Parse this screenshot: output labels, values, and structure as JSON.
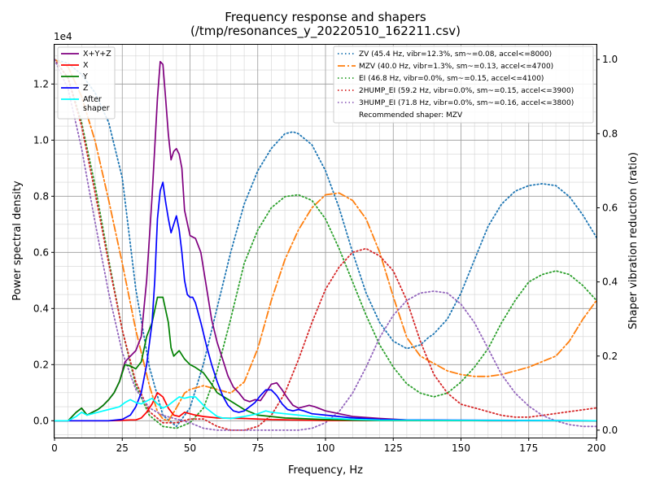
{
  "chart_data": {
    "type": "line",
    "title": "Frequency response and shapers",
    "subtitle": "(/tmp/resonances_y_20220510_162211.csv)",
    "xlabel": "Frequency, Hz",
    "ylabel": "Power spectral density",
    "ylabel_right": "Shaper vibration reduction (ratio)",
    "y_multiplier_label": "1e4",
    "xlim": [
      0,
      200
    ],
    "ylim": [
      -0.06,
      1.34
    ],
    "ylim_right": [
      -0.02,
      1.04
    ],
    "x_ticks": [
      0,
      25,
      50,
      75,
      100,
      125,
      150,
      175,
      200
    ],
    "x_tick_labels": [
      "0",
      "25",
      "50",
      "75",
      "100",
      "125",
      "150",
      "175",
      "200"
    ],
    "y_ticks": [
      0.0,
      0.2,
      0.4,
      0.6,
      0.8,
      1.0,
      1.2
    ],
    "y_tick_labels": [
      "0.0",
      "0.2",
      "0.4",
      "0.6",
      "0.8",
      "1.0",
      "1.2"
    ],
    "y_ticks_right": [
      0.0,
      0.2,
      0.4,
      0.6,
      0.8,
      1.0
    ],
    "y_tick_labels_right": [
      "0.0",
      "0.2",
      "0.4",
      "0.6",
      "0.8",
      "1.0"
    ],
    "grid": true,
    "legend_left_position": "top-left",
    "legend_right_position": "top-right",
    "recommended_text": "Recommended shaper: MZV",
    "psd_series": [
      {
        "name": "X+Y+Z",
        "color": "#800080",
        "style": "solid",
        "x": [
          0,
          5,
          8,
          10,
          12,
          14,
          16,
          18,
          20,
          22,
          24,
          26,
          28,
          30,
          32,
          34,
          36,
          38,
          39,
          40,
          41,
          42,
          43,
          44,
          45,
          46,
          47,
          48,
          50,
          52,
          54,
          56,
          58,
          60,
          62,
          64,
          66,
          68,
          70,
          72,
          74,
          76,
          78,
          80,
          82,
          84,
          86,
          88,
          90,
          92,
          94,
          96,
          100,
          110,
          120,
          130,
          140,
          150,
          160,
          170,
          180,
          190,
          200
        ],
        "y": [
          0,
          0,
          0.03,
          0.045,
          0.02,
          0.03,
          0.04,
          0.055,
          0.075,
          0.1,
          0.14,
          0.21,
          0.23,
          0.25,
          0.3,
          0.5,
          0.8,
          1.15,
          1.28,
          1.27,
          1.15,
          1.02,
          0.93,
          0.96,
          0.97,
          0.95,
          0.9,
          0.75,
          0.66,
          0.65,
          0.6,
          0.48,
          0.36,
          0.28,
          0.22,
          0.16,
          0.12,
          0.1,
          0.075,
          0.068,
          0.075,
          0.072,
          0.1,
          0.13,
          0.135,
          0.11,
          0.08,
          0.055,
          0.045,
          0.05,
          0.055,
          0.05,
          0.035,
          0.015,
          0.008,
          0.003,
          0.002,
          0.001,
          0,
          0,
          0,
          0,
          0
        ]
      },
      {
        "name": "X",
        "color": "#ff0000",
        "style": "solid",
        "x": [
          0,
          20,
          24,
          28,
          30,
          32,
          34,
          36,
          38,
          40,
          42,
          44,
          46,
          48,
          50,
          52,
          55,
          60,
          70,
          80,
          100,
          200
        ],
        "y": [
          0,
          0,
          0.001,
          0.003,
          0.003,
          0.01,
          0.03,
          0.06,
          0.1,
          0.085,
          0.045,
          0.02,
          0.015,
          0.03,
          0.025,
          0.02,
          0.015,
          0.01,
          0.008,
          0.004,
          0.001,
          0
        ]
      },
      {
        "name": "Y",
        "color": "#008000",
        "style": "solid",
        "x": [
          0,
          5,
          8,
          10,
          12,
          14,
          16,
          18,
          20,
          22,
          24,
          26,
          28,
          30,
          32,
          34,
          36,
          38,
          40,
          42,
          43,
          44,
          45,
          46,
          48,
          50,
          52,
          55,
          58,
          60,
          65,
          70,
          75,
          80,
          85,
          90,
          100,
          110,
          120,
          200
        ],
        "y": [
          0,
          0,
          0.03,
          0.045,
          0.02,
          0.03,
          0.04,
          0.055,
          0.075,
          0.1,
          0.14,
          0.2,
          0.195,
          0.185,
          0.21,
          0.3,
          0.35,
          0.44,
          0.44,
          0.35,
          0.26,
          0.23,
          0.24,
          0.25,
          0.22,
          0.2,
          0.19,
          0.17,
          0.13,
          0.1,
          0.07,
          0.04,
          0.02,
          0.015,
          0.01,
          0.008,
          0.004,
          0.002,
          0.001,
          0
        ]
      },
      {
        "name": "Z",
        "color": "#0000ff",
        "style": "solid",
        "x": [
          0,
          20,
          25,
          28,
          30,
          32,
          34,
          36,
          37,
          38,
          39,
          40,
          41,
          42,
          43,
          44,
          45,
          46,
          47,
          48,
          49,
          50,
          51,
          52,
          54,
          56,
          58,
          60,
          62,
          64,
          66,
          68,
          70,
          72,
          74,
          76,
          78,
          80,
          82,
          84,
          86,
          88,
          90,
          92,
          95,
          100,
          110,
          120,
          130,
          200
        ],
        "y": [
          0,
          0,
          0.005,
          0.02,
          0.05,
          0.1,
          0.2,
          0.35,
          0.5,
          0.72,
          0.82,
          0.85,
          0.78,
          0.72,
          0.67,
          0.7,
          0.73,
          0.68,
          0.6,
          0.5,
          0.45,
          0.44,
          0.44,
          0.42,
          0.35,
          0.27,
          0.2,
          0.14,
          0.09,
          0.055,
          0.035,
          0.03,
          0.035,
          0.05,
          0.065,
          0.09,
          0.11,
          0.11,
          0.09,
          0.06,
          0.04,
          0.035,
          0.04,
          0.035,
          0.025,
          0.02,
          0.01,
          0.005,
          0.003,
          0
        ]
      },
      {
        "name": "After\nshaper",
        "color": "#00ffff",
        "style": "solid",
        "x": [
          0,
          5,
          8,
          10,
          12,
          14,
          16,
          18,
          20,
          22,
          24,
          26,
          28,
          30,
          32,
          34,
          36,
          38,
          40,
          42,
          44,
          46,
          48,
          50,
          52,
          54,
          56,
          58,
          60,
          62,
          65,
          70,
          75,
          78,
          80,
          85,
          90,
          100,
          110,
          120,
          200
        ],
        "y": [
          0,
          0,
          0.015,
          0.03,
          0.02,
          0.025,
          0.03,
          0.035,
          0.04,
          0.045,
          0.05,
          0.065,
          0.075,
          0.065,
          0.06,
          0.07,
          0.08,
          0.06,
          0.045,
          0.055,
          0.07,
          0.085,
          0.08,
          0.085,
          0.085,
          0.065,
          0.045,
          0.03,
          0.015,
          0.01,
          0.008,
          0.015,
          0.025,
          0.035,
          0.03,
          0.025,
          0.02,
          0.01,
          0.005,
          0.002,
          0
        ]
      }
    ],
    "shaper_series": [
      {
        "name": "ZV (45.4 Hz, vibr=12.3%, sm~=0.08, accel<=8000)",
        "color": "#1f77b4",
        "style": "dotted",
        "x": [
          0,
          5,
          10,
          15,
          20,
          25,
          30,
          35,
          40,
          45,
          50,
          55,
          60,
          65,
          70,
          75,
          80,
          85,
          88,
          90,
          95,
          100,
          105,
          110,
          115,
          120,
          125,
          130,
          135,
          138,
          140,
          145,
          150,
          155,
          160,
          165,
          170,
          175,
          180,
          185,
          190,
          195,
          200
        ],
        "y": [
          1.0,
          0.99,
          0.96,
          0.91,
          0.83,
          0.68,
          0.38,
          0.17,
          0.04,
          0.01,
          0.06,
          0.18,
          0.33,
          0.48,
          0.61,
          0.7,
          0.76,
          0.8,
          0.805,
          0.8,
          0.77,
          0.7,
          0.6,
          0.48,
          0.37,
          0.29,
          0.24,
          0.22,
          0.23,
          0.25,
          0.26,
          0.3,
          0.37,
          0.46,
          0.55,
          0.61,
          0.645,
          0.66,
          0.665,
          0.66,
          0.63,
          0.58,
          0.52
        ]
      },
      {
        "name": "MZV (40.0 Hz, vibr=1.3%, sm~=0.13, accel<=4700)",
        "color": "#ff7f0e",
        "style": "dashdot",
        "x": [
          0,
          5,
          10,
          15,
          20,
          25,
          30,
          35,
          38,
          40,
          42,
          45,
          48,
          50,
          55,
          60,
          65,
          70,
          75,
          80,
          85,
          90,
          95,
          100,
          105,
          110,
          115,
          120,
          125,
          130,
          135,
          140,
          145,
          150,
          155,
          160,
          165,
          170,
          175,
          180,
          185,
          190,
          195,
          200
        ],
        "y": [
          1.0,
          0.98,
          0.9,
          0.78,
          0.62,
          0.45,
          0.27,
          0.12,
          0.05,
          0.03,
          0.025,
          0.06,
          0.1,
          0.11,
          0.12,
          0.11,
          0.1,
          0.13,
          0.22,
          0.35,
          0.46,
          0.54,
          0.6,
          0.635,
          0.64,
          0.62,
          0.57,
          0.48,
          0.36,
          0.25,
          0.2,
          0.18,
          0.16,
          0.15,
          0.145,
          0.145,
          0.15,
          0.16,
          0.17,
          0.185,
          0.2,
          0.24,
          0.3,
          0.35
        ]
      },
      {
        "name": "EI (46.8 Hz, vibr=0.0%, sm~=0.15, accel<=4100)",
        "color": "#2ca02c",
        "style": "dotted",
        "x": [
          0,
          5,
          10,
          15,
          20,
          25,
          30,
          35,
          40,
          45,
          50,
          55,
          60,
          65,
          70,
          75,
          80,
          85,
          90,
          95,
          100,
          105,
          110,
          115,
          120,
          125,
          130,
          135,
          140,
          145,
          150,
          155,
          160,
          165,
          170,
          175,
          180,
          185,
          190,
          195,
          200
        ],
        "y": [
          1.0,
          0.95,
          0.83,
          0.66,
          0.46,
          0.27,
          0.12,
          0.04,
          0.01,
          0.005,
          0.02,
          0.06,
          0.16,
          0.3,
          0.45,
          0.54,
          0.6,
          0.63,
          0.635,
          0.62,
          0.57,
          0.49,
          0.4,
          0.31,
          0.23,
          0.17,
          0.125,
          0.1,
          0.09,
          0.1,
          0.13,
          0.17,
          0.22,
          0.29,
          0.35,
          0.4,
          0.42,
          0.43,
          0.42,
          0.39,
          0.35
        ]
      },
      {
        "name": "2HUMP_EI (59.2 Hz, vibr=0.0%, sm~=0.15, accel<=3900)",
        "color": "#d62728",
        "style": "dotted",
        "x": [
          0,
          5,
          10,
          15,
          20,
          25,
          30,
          35,
          40,
          45,
          50,
          55,
          60,
          65,
          70,
          75,
          80,
          85,
          90,
          95,
          100,
          105,
          110,
          115,
          120,
          125,
          130,
          135,
          140,
          145,
          150,
          155,
          160,
          165,
          170,
          175,
          180,
          185,
          190,
          195,
          200
        ],
        "y": [
          1.0,
          0.95,
          0.82,
          0.64,
          0.45,
          0.27,
          0.13,
          0.05,
          0.02,
          0.02,
          0.03,
          0.03,
          0.01,
          0.0,
          0.0,
          0.01,
          0.04,
          0.1,
          0.19,
          0.29,
          0.38,
          0.44,
          0.48,
          0.49,
          0.47,
          0.43,
          0.35,
          0.24,
          0.15,
          0.1,
          0.07,
          0.06,
          0.05,
          0.04,
          0.035,
          0.035,
          0.04,
          0.045,
          0.05,
          0.055,
          0.06
        ]
      },
      {
        "name": "3HUMP_EI (71.8 Hz, vibr=0.0%, sm~=0.16, accel<=3800)",
        "color": "#9467bd",
        "style": "dotted",
        "x": [
          0,
          5,
          10,
          15,
          20,
          25,
          30,
          35,
          40,
          45,
          50,
          55,
          60,
          65,
          70,
          75,
          80,
          85,
          90,
          95,
          100,
          105,
          110,
          115,
          120,
          125,
          130,
          135,
          140,
          145,
          150,
          155,
          160,
          165,
          170,
          175,
          180,
          185,
          190,
          195,
          200
        ],
        "y": [
          1.0,
          0.92,
          0.76,
          0.56,
          0.37,
          0.21,
          0.11,
          0.06,
          0.04,
          0.03,
          0.02,
          0.005,
          0.0,
          0.0,
          0.0,
          0.0,
          0.0,
          0.0,
          0.0,
          0.005,
          0.02,
          0.05,
          0.1,
          0.17,
          0.25,
          0.31,
          0.35,
          0.37,
          0.375,
          0.37,
          0.34,
          0.29,
          0.22,
          0.15,
          0.1,
          0.065,
          0.04,
          0.025,
          0.015,
          0.01,
          0.01
        ]
      }
    ]
  }
}
